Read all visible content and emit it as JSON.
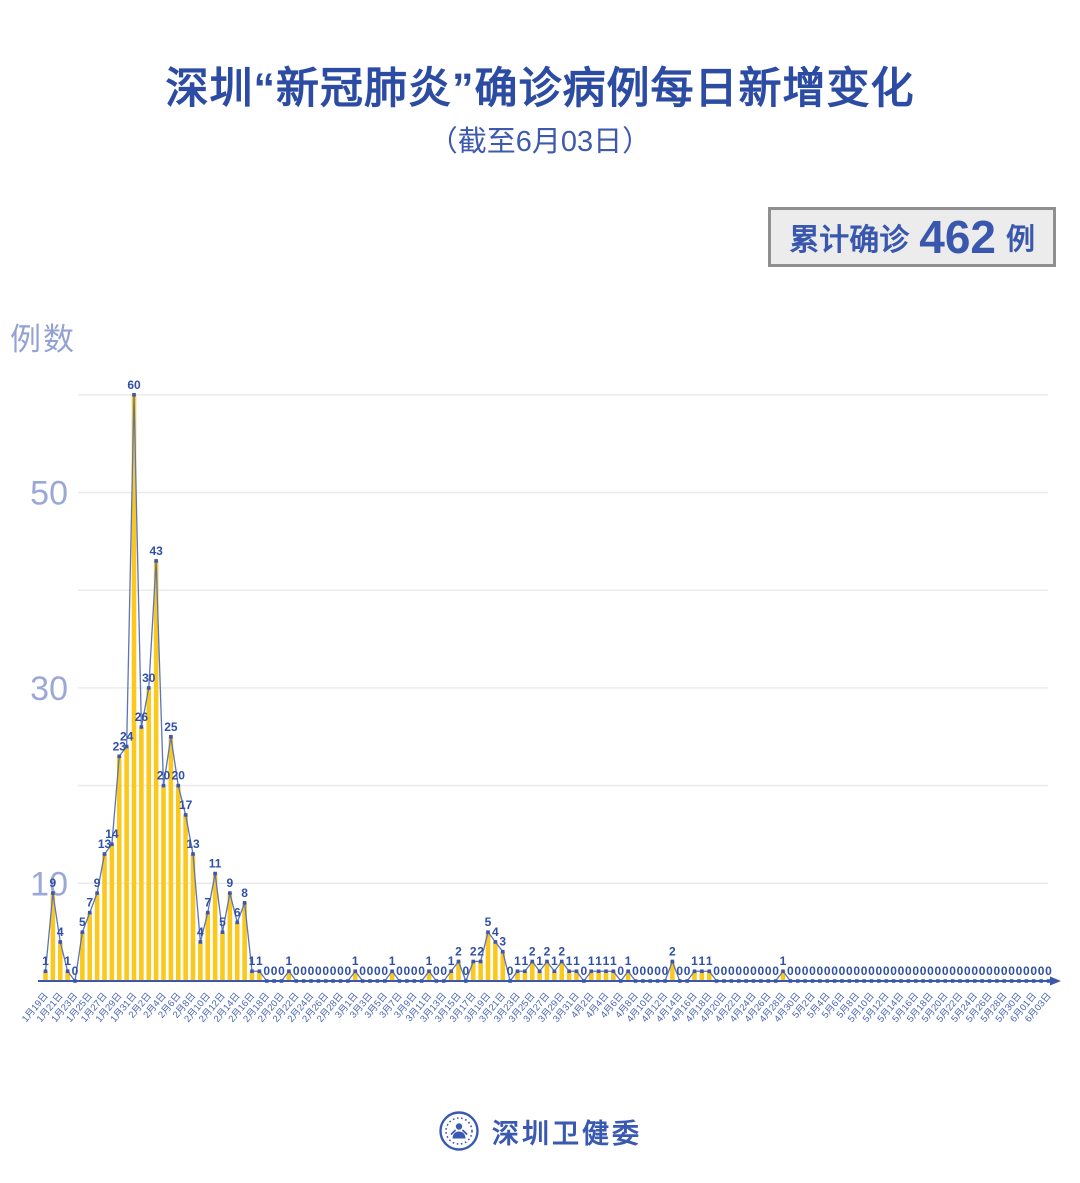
{
  "header": {
    "title": "深圳“新冠肺炎”确诊病例每日新增变化",
    "subtitle": "（截至6月03日）"
  },
  "summary_badge": {
    "prefix": "累计确诊",
    "value": "462",
    "suffix": "例"
  },
  "footer": {
    "org_name": "深圳卫健委",
    "logo": "shenzhen-health-commission-emblem"
  },
  "colors": {
    "title_blue": "#2c4ba3",
    "bar_yellow": "#fbc81e",
    "line_blue": "#5b74bb",
    "marker_blue": "#3b57ad",
    "point_label_blue": "#3050a5",
    "axis_tick_blue": "#4664b4",
    "y_label_periwinkle": "#9aa8d8",
    "gridline_gray": "#e9e9ec",
    "badge_bg": "#ececec",
    "badge_border": "#8f8f8f"
  },
  "chart_data": {
    "type": "bar",
    "overlay": "line-with-markers-and-value-labels",
    "title": "深圳“新冠肺炎”确诊病例每日新增变化",
    "subtitle": "（截至6月03日）",
    "xlabel": "",
    "ylabel": "例数",
    "ylim": [
      0,
      62
    ],
    "grid": true,
    "y_gridlines": [
      10,
      20,
      30,
      40,
      50,
      60
    ],
    "y_labeled_ticks": [
      10,
      30,
      50
    ],
    "x_tick_interval_days": 2,
    "x_tick_labels": [
      "1月19日",
      "1月21日",
      "1月23日",
      "1月25日",
      "1月27日",
      "1月29日",
      "1月31日",
      "2月2日",
      "2月4日",
      "2月6日",
      "2月8日",
      "2月10日",
      "2月12日",
      "2月14日",
      "2月16日",
      "2月18日",
      "2月20日",
      "2月22日",
      "2月24日",
      "2月26日",
      "2月28日",
      "3月1日",
      "3月3日",
      "3月5日",
      "3月7日",
      "3月9日",
      "3月11日",
      "3月13日",
      "3月15日",
      "3月17日",
      "3月19日",
      "3月21日",
      "3月23日",
      "3月25日",
      "3月27日",
      "3月29日",
      "3月31日",
      "4月2日",
      "4月4日",
      "4月6日",
      "4月8日",
      "4月10日",
      "4月12日",
      "4月14日",
      "4月16日",
      "4月18日",
      "4月20日",
      "4月22日",
      "4月24日",
      "4月26日",
      "4月28日",
      "4月30日",
      "5月2日",
      "5月4日",
      "5月6日",
      "5月8日",
      "5月10日",
      "5月12日",
      "5月14日",
      "5月16日",
      "5月18日",
      "5月20日",
      "5月22日",
      "5月24日",
      "5月26日",
      "5月28日",
      "5月30日",
      "6月01日",
      "6月03日"
    ],
    "values": [
      1,
      9,
      4,
      1,
      0,
      5,
      7,
      9,
      13,
      14,
      23,
      24,
      60,
      26,
      30,
      43,
      20,
      25,
      20,
      17,
      13,
      4,
      7,
      11,
      5,
      9,
      6,
      8,
      1,
      1,
      0,
      0,
      0,
      1,
      0,
      0,
      0,
      0,
      0,
      0,
      0,
      0,
      1,
      0,
      0,
      0,
      0,
      1,
      0,
      0,
      0,
      0,
      1,
      0,
      0,
      1,
      2,
      0,
      2,
      2,
      5,
      4,
      3,
      0,
      1,
      1,
      2,
      1,
      2,
      1,
      2,
      1,
      1,
      0,
      1,
      1,
      1,
      1,
      0,
      1,
      0,
      0,
      0,
      0,
      0,
      2,
      0,
      0,
      1,
      1,
      1,
      0,
      0,
      0,
      0,
      0,
      0,
      0,
      0,
      0,
      1,
      0,
      0,
      0,
      0,
      0,
      0,
      0,
      0,
      0,
      0,
      0,
      0,
      0,
      0,
      0,
      0,
      0,
      0,
      0,
      0,
      0,
      0,
      0,
      0,
      0,
      0,
      0,
      0,
      0,
      0,
      0,
      0,
      0,
      0,
      0,
      0
    ],
    "total": 462
  }
}
